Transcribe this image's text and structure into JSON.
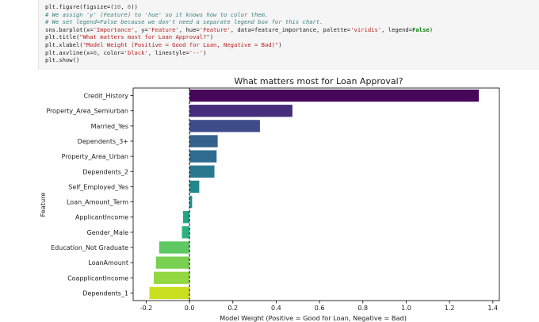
{
  "code_cell": {
    "lines": [
      [
        {
          "t": "plt.figure(figsize=(",
          "c": ""
        },
        {
          "t": "10",
          "c": "num"
        },
        {
          "t": ", ",
          "c": ""
        },
        {
          "t": "6",
          "c": "num"
        },
        {
          "t": "))",
          "c": ""
        }
      ],
      [
        {
          "t": "# We assign 'y' (Feature) to 'hue' so it knows how to color them.",
          "c": "comment"
        }
      ],
      [
        {
          "t": "# We set legend=False because we don't need a separate legend box for this chart.",
          "c": "comment"
        }
      ],
      [
        {
          "t": "sns.barplot(x=",
          "c": ""
        },
        {
          "t": "'Importance'",
          "c": "string"
        },
        {
          "t": ", y=",
          "c": ""
        },
        {
          "t": "'Feature'",
          "c": "string"
        },
        {
          "t": ", hue=",
          "c": ""
        },
        {
          "t": "'Feature'",
          "c": "string"
        },
        {
          "t": ", data=feature_importance, palette=",
          "c": ""
        },
        {
          "t": "'viridis'",
          "c": "string"
        },
        {
          "t": ", legend=",
          "c": ""
        },
        {
          "t": "False",
          "c": "kw"
        },
        {
          "t": ")",
          "c": ""
        }
      ],
      [
        {
          "t": "plt.title(",
          "c": ""
        },
        {
          "t": "\"What matters most for Loan Approval?\"",
          "c": "string"
        },
        {
          "t": ")",
          "c": ""
        }
      ],
      [
        {
          "t": "plt.xlabel(",
          "c": ""
        },
        {
          "t": "\"Model Weight (Positive = Good for Loan, Negative = Bad)\"",
          "c": "string"
        },
        {
          "t": ")",
          "c": ""
        }
      ],
      [
        {
          "t": "plt.axvline(x=",
          "c": ""
        },
        {
          "t": "0",
          "c": "num"
        },
        {
          "t": ", color=",
          "c": ""
        },
        {
          "t": "'black'",
          "c": "string"
        },
        {
          "t": ", linestyle=",
          "c": ""
        },
        {
          "t": "'--'",
          "c": "string"
        },
        {
          "t": ")",
          "c": ""
        }
      ],
      [
        {
          "t": "plt.show()",
          "c": ""
        }
      ]
    ]
  },
  "chart_data": {
    "type": "bar",
    "orientation": "horizontal",
    "title": "What matters most for Loan Approval?",
    "xlabel": "Model Weight (Positive = Good for Loan, Negative = Bad)",
    "ylabel": "Feature",
    "xlim": [
      -0.26,
      1.43
    ],
    "xticks": [
      -0.2,
      0.0,
      0.2,
      0.4,
      0.6,
      0.8,
      1.0,
      1.2,
      1.4
    ],
    "xtick_labels": [
      "-0.2",
      "0.0",
      "0.2",
      "0.4",
      "0.6",
      "0.8",
      "1.0",
      "1.2",
      "1.4"
    ],
    "reference_line": {
      "x": 0,
      "color": "#000000",
      "style": "dashed"
    },
    "palette": "viridis",
    "grid": false,
    "legend": false,
    "categories": [
      "Credit_History",
      "Property_Area_Semiurban",
      "Married_Yes",
      "Dependents_3+",
      "Property_Area_Urban",
      "Dependents_2",
      "Self_Employed_Yes",
      "Loan_Amount_Term",
      "ApplicantIncome",
      "Gender_Male",
      "Education_Not Graduate",
      "LoanAmount",
      "CoapplicantIncome",
      "Dependents_1"
    ],
    "values": [
      1.335,
      0.475,
      0.325,
      0.13,
      0.125,
      0.115,
      0.045,
      0.012,
      -0.03,
      -0.035,
      -0.14,
      -0.155,
      -0.165,
      -0.185
    ],
    "colors": [
      "#46075a",
      "#472e7c",
      "#3e4c8a",
      "#35618d",
      "#2f6b8e",
      "#29788e",
      "#22878d",
      "#20928c",
      "#21a585",
      "#2db27d",
      "#5ec962",
      "#7ad151",
      "#93d741",
      "#c8e020"
    ]
  }
}
